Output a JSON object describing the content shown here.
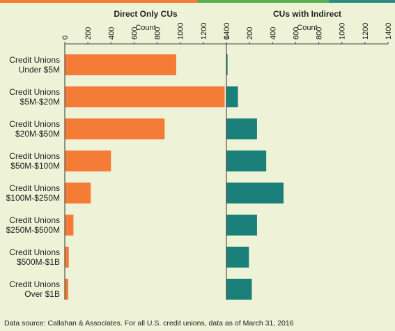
{
  "top_stripe_colors": [
    "#f47c36",
    "#f47c36",
    "#f47c36",
    "#58b04f",
    "#58b04f",
    "#2a8c82"
  ],
  "bar_colors": {
    "direct": "#f47c36",
    "indirect": "#1b7f7a"
  },
  "chart_data": {
    "type": "bar",
    "orientation": "horizontal",
    "categories": [
      [
        "Credit Unions",
        "Under $5M"
      ],
      [
        "Credit Unions",
        "$5M-$20M"
      ],
      [
        "Credit Unions",
        "$20M-$50M"
      ],
      [
        "Credit Unions",
        "$50M-$100M"
      ],
      [
        "Credit Unions",
        "$100M-$250M"
      ],
      [
        "Credit Unions",
        "$250M-$500M"
      ],
      [
        "Credit Unions",
        "$500M-$1B"
      ],
      [
        "Credit Unions",
        "Over $1B"
      ]
    ],
    "panels": [
      {
        "title": "Direct Only CUs",
        "xlabel": "Count",
        "xlim": [
          0,
          1400
        ],
        "ticks": [
          "0",
          "200",
          "400",
          "600",
          "800",
          "1000",
          "1200",
          "1400"
        ],
        "values": [
          965,
          1385,
          865,
          400,
          225,
          75,
          35,
          30
        ]
      },
      {
        "title": "CUs with Indirect",
        "xlabel": "Count",
        "xlim": [
          0,
          1400
        ],
        "ticks": [
          "0",
          "200",
          "400",
          "600",
          "800",
          "1000",
          "1200",
          "1400"
        ],
        "values": [
          10,
          100,
          265,
          345,
          495,
          265,
          195,
          220
        ]
      }
    ]
  },
  "source_note": "Data source: Callahan & Associates. For all U.S. credit unions, data as of March 31, 2016"
}
